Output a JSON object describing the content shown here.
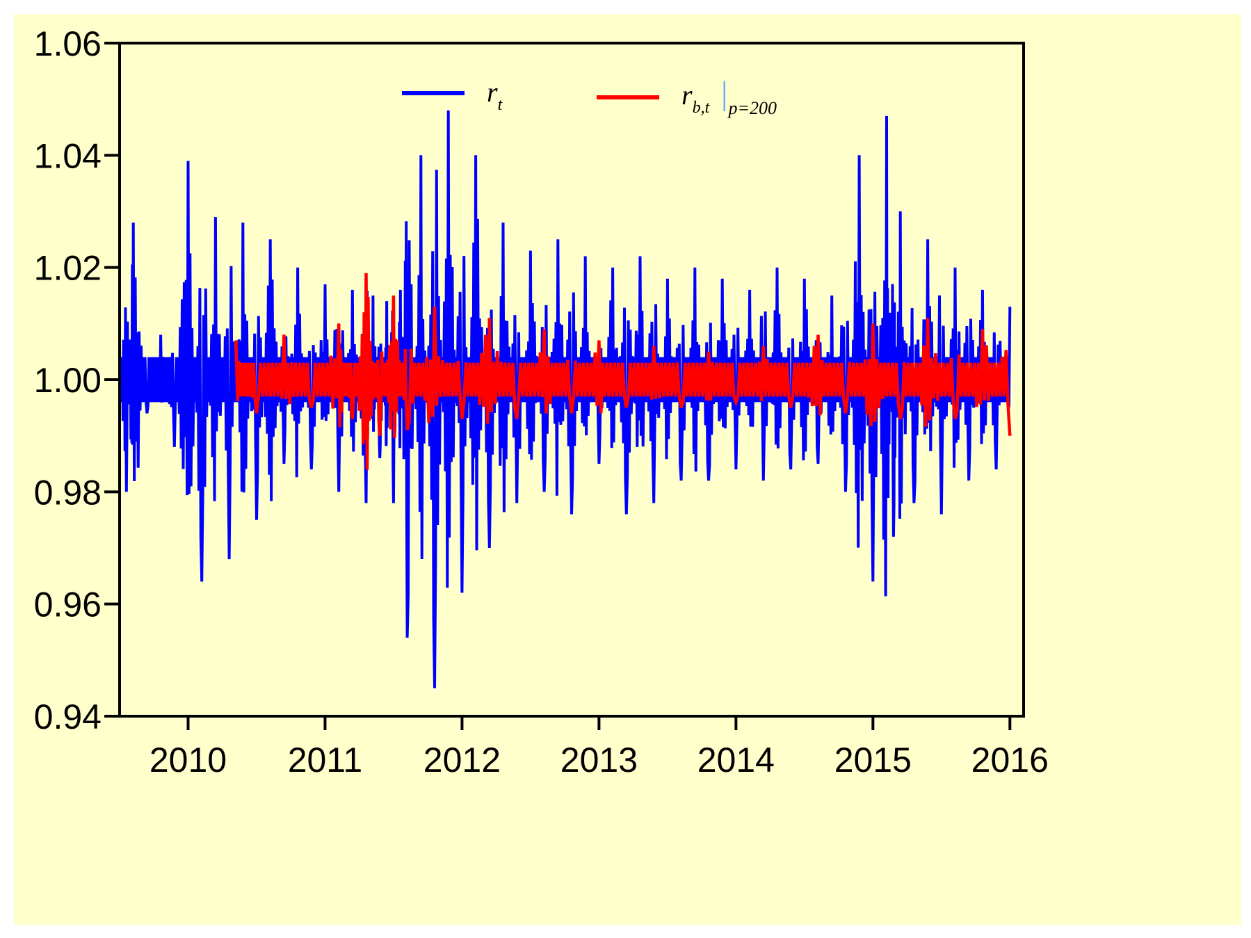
{
  "chart_data": {
    "type": "line",
    "title": "",
    "xlabel": "",
    "ylabel": "",
    "x_range": [
      2009.5,
      2016.1
    ],
    "ylim": [
      0.94,
      1.06
    ],
    "y_ticks": [
      "1.06",
      "1.04",
      "1.02",
      "1.00",
      "0.98",
      "0.96",
      "0.94"
    ],
    "y_tick_values": [
      1.06,
      1.04,
      1.02,
      1.0,
      0.98,
      0.96,
      0.94
    ],
    "x_ticks": [
      "2010",
      "2011",
      "2012",
      "2013",
      "2014",
      "2015",
      "2016"
    ],
    "x_tick_values": [
      2010,
      2011,
      2012,
      2013,
      2014,
      2015,
      2016
    ],
    "grid": false,
    "legend_position": "top-center",
    "series": [
      {
        "name": "r_t",
        "color": "#0000ff",
        "x_start": 2009.5,
        "x_end": 2016.0,
        "x": [
          2009.5,
          2009.55,
          2009.6,
          2009.7,
          2009.8,
          2009.9,
          2010.0,
          2010.1,
          2010.2,
          2010.3,
          2010.4,
          2010.5,
          2010.6,
          2010.7,
          2010.8,
          2010.9,
          2011.0,
          2011.1,
          2011.2,
          2011.3,
          2011.35,
          2011.4,
          2011.45,
          2011.5,
          2011.55,
          2011.6,
          2011.7,
          2011.8,
          2011.9,
          2012.0,
          2012.1,
          2012.2,
          2012.3,
          2012.4,
          2012.5,
          2012.6,
          2012.7,
          2012.8,
          2012.9,
          2013.0,
          2013.1,
          2013.2,
          2013.3,
          2013.4,
          2013.5,
          2013.6,
          2013.7,
          2013.8,
          2013.9,
          2014.0,
          2014.1,
          2014.2,
          2014.3,
          2014.4,
          2014.5,
          2014.6,
          2014.7,
          2014.8,
          2014.9,
          2015.0,
          2015.1,
          2015.15,
          2015.2,
          2015.3,
          2015.4,
          2015.5,
          2015.6,
          2015.7,
          2015.8,
          2015.9,
          2016.0
        ],
        "values": [
          1.004,
          0.98,
          1.028,
          0.994,
          1.008,
          0.988,
          1.039,
          0.964,
          1.029,
          0.968,
          1.028,
          0.975,
          1.025,
          0.985,
          1.02,
          0.984,
          1.017,
          0.98,
          1.016,
          0.978,
          1.015,
          0.986,
          1.014,
          0.978,
          1.016,
          0.954,
          1.04,
          0.945,
          1.048,
          0.962,
          1.04,
          0.97,
          1.028,
          0.978,
          1.023,
          0.98,
          1.025,
          0.976,
          1.022,
          0.985,
          1.02,
          0.976,
          1.022,
          0.978,
          1.018,
          0.982,
          1.02,
          0.982,
          1.018,
          0.984,
          1.016,
          0.982,
          1.02,
          0.984,
          1.018,
          0.985,
          1.015,
          0.98,
          1.04,
          0.964,
          1.047,
          0.972,
          1.03,
          0.978,
          1.025,
          0.976,
          1.02,
          0.982,
          1.016,
          0.984,
          1.013
        ]
      },
      {
        "name": "r_b,t |_p=200",
        "color": "#ff0000",
        "x_start": 2010.35,
        "x_end": 2016.0,
        "x": [
          2010.35,
          2010.5,
          2010.7,
          2010.9,
          2011.1,
          2011.2,
          2011.3,
          2011.4,
          2011.5,
          2011.6,
          2011.8,
          2012.0,
          2012.2,
          2012.4,
          2012.6,
          2012.8,
          2013.0,
          2013.2,
          2013.4,
          2013.6,
          2013.8,
          2014.0,
          2014.2,
          2014.4,
          2014.6,
          2014.8,
          2015.0,
          2015.2,
          2015.4,
          2015.6,
          2015.8,
          2016.0
        ],
        "values": [
          1.007,
          0.994,
          1.008,
          0.995,
          1.01,
          0.993,
          1.019,
          0.99,
          1.015,
          0.991,
          1.013,
          0.993,
          1.011,
          0.993,
          1.009,
          0.994,
          1.007,
          0.995,
          1.006,
          0.995,
          1.005,
          0.996,
          1.006,
          0.995,
          1.008,
          0.994,
          1.01,
          0.993,
          1.011,
          0.993,
          1.009,
          0.99
        ]
      }
    ],
    "legend": [
      {
        "label_main": "r",
        "label_sub": "t",
        "label_bar": "",
        "label_cond": ""
      },
      {
        "label_main": "r",
        "label_sub": "b,t",
        "label_bar": "|",
        "label_cond": "p=200"
      }
    ]
  }
}
